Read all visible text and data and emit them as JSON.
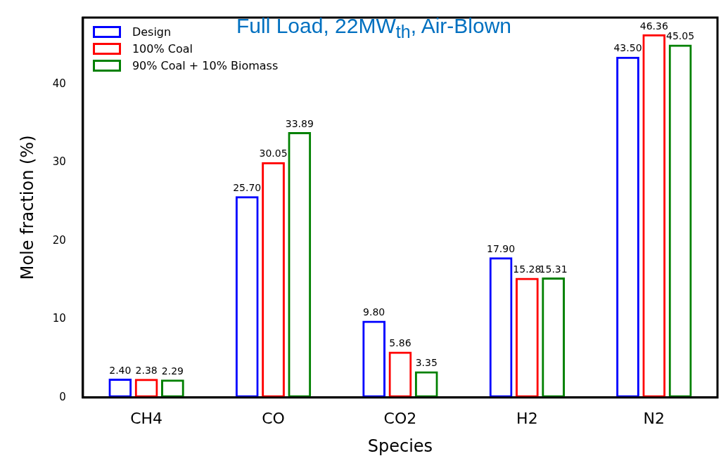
{
  "chart_data": {
    "type": "bar",
    "title": "Full Load, 22MW$_{th}$, Air-Blown",
    "xlabel": "Species",
    "ylabel": "Mole fraction (%)",
    "categories": [
      "CH4",
      "CO",
      "CO2",
      "H2",
      "N2"
    ],
    "series": [
      {
        "name": "Design",
        "color": "#0000ff",
        "values": [
          2.4,
          25.7,
          9.8,
          17.9,
          43.5
        ],
        "value_labels": [
          "2.40",
          "25.70",
          "9.80",
          "17.90",
          "43.50"
        ]
      },
      {
        "name": "100% Coal",
        "color": "#ff0000",
        "values": [
          2.38,
          30.05,
          5.86,
          15.28,
          46.36
        ],
        "value_labels": [
          "2.38",
          "30.05",
          "5.86",
          "15.28",
          "46.36"
        ]
      },
      {
        "name": "90% Coal + 10% Biomass",
        "color": "#008000",
        "values": [
          2.29,
          33.89,
          3.35,
          15.31,
          45.05
        ],
        "value_labels": [
          "2.29",
          "33.89",
          "3.35",
          "15.31",
          "45.05"
        ]
      }
    ],
    "ylim": [
      0,
      48.5
    ],
    "yticks": [
      0,
      10,
      20,
      30,
      40
    ],
    "grid": false,
    "legend": "top left"
  }
}
